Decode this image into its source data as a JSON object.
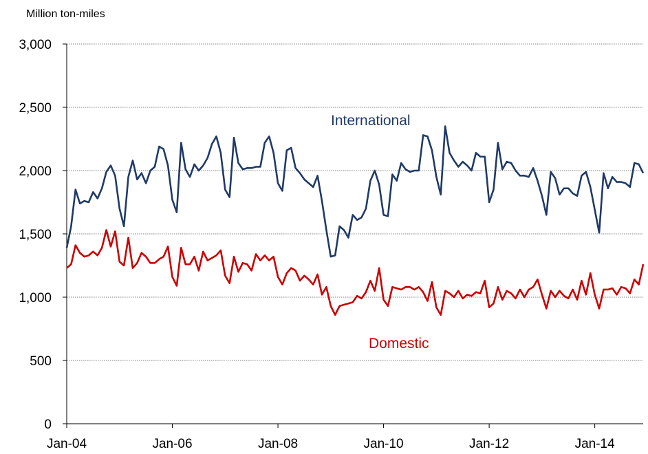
{
  "chart_data": {
    "type": "line",
    "ylabel": "Million ton-miles",
    "ylim": [
      0,
      3000
    ],
    "yticks": [
      0,
      500,
      1000,
      1500,
      2000,
      2500,
      3000
    ],
    "ytick_labels": [
      "0",
      "500",
      "1,000",
      "1,500",
      "2,000",
      "2,500",
      "3,000"
    ],
    "xlim": [
      "2004-01",
      "2014-12"
    ],
    "xticks": [
      "2004-01",
      "2006-01",
      "2008-01",
      "2010-01",
      "2012-01",
      "2014-01"
    ],
    "xtick_labels": [
      "Jan-04",
      "Jan-06",
      "Jan-08",
      "Jan-10",
      "Jan-12",
      "Jan-14"
    ],
    "grid": "horizontal dotted",
    "x": [
      "2004-01",
      "2004-02",
      "2004-03",
      "2004-04",
      "2004-05",
      "2004-06",
      "2004-07",
      "2004-08",
      "2004-09",
      "2004-10",
      "2004-11",
      "2004-12",
      "2005-01",
      "2005-02",
      "2005-03",
      "2005-04",
      "2005-05",
      "2005-06",
      "2005-07",
      "2005-08",
      "2005-09",
      "2005-10",
      "2005-11",
      "2005-12",
      "2006-01",
      "2006-02",
      "2006-03",
      "2006-04",
      "2006-05",
      "2006-06",
      "2006-07",
      "2006-08",
      "2006-09",
      "2006-10",
      "2006-11",
      "2006-12",
      "2007-01",
      "2007-02",
      "2007-03",
      "2007-04",
      "2007-05",
      "2007-06",
      "2007-07",
      "2007-08",
      "2007-09",
      "2007-10",
      "2007-11",
      "2007-12",
      "2008-01",
      "2008-02",
      "2008-03",
      "2008-04",
      "2008-05",
      "2008-06",
      "2008-07",
      "2008-08",
      "2008-09",
      "2008-10",
      "2008-11",
      "2008-12",
      "2009-01",
      "2009-02",
      "2009-03",
      "2009-04",
      "2009-05",
      "2009-06",
      "2009-07",
      "2009-08",
      "2009-09",
      "2009-10",
      "2009-11",
      "2009-12",
      "2010-01",
      "2010-02",
      "2010-03",
      "2010-04",
      "2010-05",
      "2010-06",
      "2010-07",
      "2010-08",
      "2010-09",
      "2010-10",
      "2010-11",
      "2010-12",
      "2011-01",
      "2011-02",
      "2011-03",
      "2011-04",
      "2011-05",
      "2011-06",
      "2011-07",
      "2011-08",
      "2011-09",
      "2011-10",
      "2011-11",
      "2011-12",
      "2012-01",
      "2012-02",
      "2012-03",
      "2012-04",
      "2012-05",
      "2012-06",
      "2012-07",
      "2012-08",
      "2012-09",
      "2012-10",
      "2012-11",
      "2012-12",
      "2013-01",
      "2013-02",
      "2013-03",
      "2013-04",
      "2013-05",
      "2013-06",
      "2013-07",
      "2013-08",
      "2013-09",
      "2013-10",
      "2013-11",
      "2013-12",
      "2014-01",
      "2014-02",
      "2014-03",
      "2014-04",
      "2014-05",
      "2014-06",
      "2014-07",
      "2014-08",
      "2014-09",
      "2014-10",
      "2014-11",
      "2014-12"
    ],
    "series": [
      {
        "name": "International",
        "color": "#1f3a68",
        "values": [
          1390,
          1560,
          1850,
          1740,
          1760,
          1750,
          1830,
          1780,
          1860,
          1990,
          2040,
          1960,
          1700,
          1560,
          1950,
          2080,
          1930,
          1980,
          1900,
          2000,
          2030,
          2190,
          2170,
          2040,
          1770,
          1670,
          2220,
          2010,
          1950,
          2050,
          2000,
          2040,
          2100,
          2210,
          2270,
          2140,
          1850,
          1790,
          2260,
          2060,
          2010,
          2020,
          2020,
          2030,
          2030,
          2220,
          2270,
          2140,
          1900,
          1840,
          2160,
          2180,
          2020,
          1980,
          1930,
          1900,
          1870,
          1960,
          1760,
          1530,
          1320,
          1330,
          1560,
          1530,
          1470,
          1650,
          1610,
          1630,
          1700,
          1920,
          2000,
          1890,
          1650,
          1640,
          1970,
          1920,
          2060,
          2010,
          1990,
          2000,
          2000,
          2280,
          2270,
          2160,
          1950,
          1810,
          2350,
          2140,
          2080,
          2030,
          2070,
          2040,
          2000,
          2140,
          2110,
          2110,
          1750,
          1850,
          2220,
          2010,
          2070,
          2060,
          2000,
          1960,
          1960,
          1950,
          2020,
          1920,
          1800,
          1650,
          1990,
          1940,
          1810,
          1860,
          1860,
          1820,
          1800,
          1960,
          1990,
          1870,
          1690,
          1510,
          1980,
          1860,
          1950,
          1910,
          1910,
          1900,
          1870,
          2060,
          2050,
          1980
        ]
      },
      {
        "name": "Domestic",
        "color": "#cc0000",
        "values": [
          1230,
          1260,
          1410,
          1350,
          1320,
          1330,
          1360,
          1330,
          1390,
          1530,
          1400,
          1520,
          1280,
          1250,
          1470,
          1230,
          1270,
          1350,
          1320,
          1270,
          1270,
          1300,
          1320,
          1400,
          1160,
          1090,
          1390,
          1260,
          1260,
          1320,
          1210,
          1360,
          1290,
          1310,
          1330,
          1370,
          1170,
          1110,
          1320,
          1200,
          1270,
          1260,
          1210,
          1340,
          1290,
          1330,
          1290,
          1320,
          1160,
          1100,
          1190,
          1230,
          1210,
          1130,
          1170,
          1140,
          1100,
          1180,
          1020,
          1080,
          930,
          860,
          930,
          940,
          950,
          960,
          1010,
          990,
          1040,
          1130,
          1050,
          1230,
          980,
          930,
          1080,
          1070,
          1060,
          1080,
          1080,
          1060,
          1080,
          1040,
          970,
          1120,
          920,
          860,
          1050,
          1030,
          1000,
          1050,
          990,
          1020,
          1010,
          1040,
          1030,
          1130,
          920,
          950,
          1080,
          980,
          1050,
          1030,
          990,
          1060,
          1000,
          1060,
          1080,
          1140,
          1020,
          910,
          1050,
          1000,
          1050,
          1010,
          990,
          1060,
          980,
          1130,
          1020,
          1190,
          1020,
          910,
          1060,
          1060,
          1070,
          1020,
          1080,
          1070,
          1030,
          1140,
          1100,
          1260
        ]
      }
    ]
  }
}
